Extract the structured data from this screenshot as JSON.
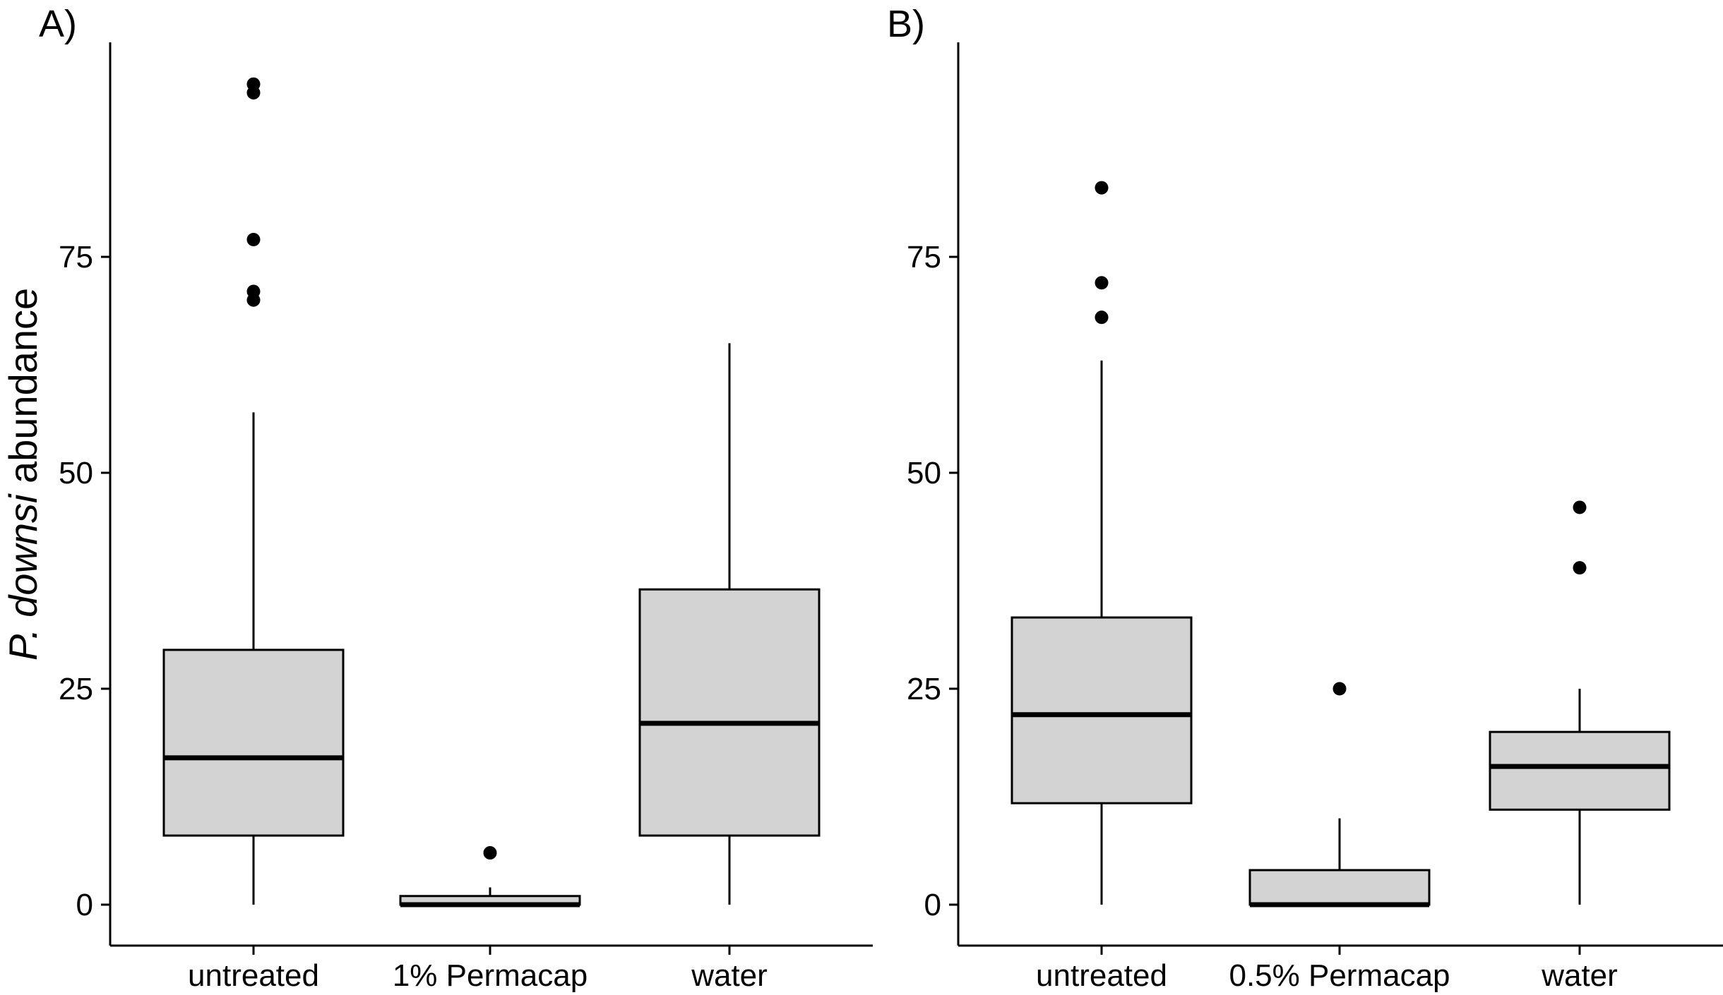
{
  "figure": {
    "ylabel_italic": "P. downsi",
    "ylabel_rest": " abundance"
  },
  "colors": {
    "box_fill": "#d3d3d3",
    "line": "#000000"
  },
  "chart_data": [
    {
      "type": "boxplot",
      "panel": "A)",
      "categories": [
        "untreated",
        "1% Permacap",
        "water"
      ],
      "ylim": [
        -5,
        100
      ],
      "yticks": [
        0,
        25,
        50,
        75
      ],
      "grid": false,
      "boxes": [
        {
          "q1": 8,
          "median": 17,
          "q3": 29.5,
          "whisker_low": 0,
          "whisker_high": 57,
          "outliers": [
            70,
            71,
            77,
            94,
            95
          ]
        },
        {
          "q1": 0,
          "median": 0,
          "q3": 1,
          "whisker_low": 0,
          "whisker_high": 2,
          "outliers": [
            6
          ]
        },
        {
          "q1": 8,
          "median": 21,
          "q3": 36.5,
          "whisker_low": 0,
          "whisker_high": 65,
          "outliers": []
        }
      ]
    },
    {
      "type": "boxplot",
      "panel": "B)",
      "categories": [
        "untreated",
        "0.5% Permacap",
        "water"
      ],
      "ylim": [
        -5,
        100
      ],
      "yticks": [
        0,
        25,
        50,
        75
      ],
      "grid": false,
      "boxes": [
        {
          "q1": 11.75,
          "median": 22,
          "q3": 33.25,
          "whisker_low": 0,
          "whisker_high": 63,
          "outliers": [
            68,
            72,
            83
          ]
        },
        {
          "q1": 0,
          "median": 0,
          "q3": 4,
          "whisker_low": 0,
          "whisker_high": 10,
          "outliers": [
            25
          ]
        },
        {
          "q1": 11,
          "median": 16,
          "q3": 20,
          "whisker_low": 0,
          "whisker_high": 25,
          "outliers": [
            39,
            46
          ]
        }
      ]
    }
  ]
}
